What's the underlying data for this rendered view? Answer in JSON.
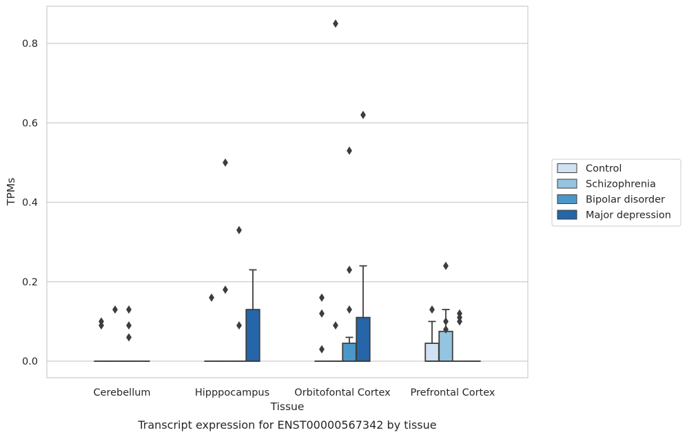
{
  "chart_data": {
    "type": "box",
    "caption": "Transcript expression for ENST00000567342 by tissue",
    "xlabel": "Tissue",
    "ylabel": "TPMs",
    "ylim": [
      -0.04,
      0.895
    ],
    "yticks": [
      "0.0",
      "0.2",
      "0.4",
      "0.6",
      "0.8"
    ],
    "grid": "horizontal",
    "legend_position": "right",
    "categories": [
      "Cerebellum",
      "Hipppocampus",
      "Orbitofontal Cortex",
      "Prefrontal Cortex"
    ],
    "series": [
      {
        "name": "Control",
        "color": "#d0e1f2",
        "boxes": [
          {
            "q1": 0,
            "median": 0,
            "q3": 0,
            "whisker_low": 0,
            "whisker_high": 0,
            "outliers": [
              0.09,
              0.1
            ]
          },
          {
            "q1": 0,
            "median": 0,
            "q3": 0,
            "whisker_low": 0,
            "whisker_high": 0,
            "outliers": [
              0.16
            ]
          },
          {
            "q1": 0,
            "median": 0,
            "q3": 0,
            "whisker_low": 0,
            "whisker_high": 0,
            "outliers": [
              0.03,
              0.12,
              0.16
            ]
          },
          {
            "q1": 0,
            "median": 0,
            "q3": 0.045,
            "whisker_low": 0,
            "whisker_high": 0.1,
            "outliers": [
              0.13
            ]
          }
        ]
      },
      {
        "name": "Schizophrenia",
        "color": "#94c4df",
        "boxes": [
          {
            "q1": 0,
            "median": 0,
            "q3": 0,
            "whisker_low": 0,
            "whisker_high": 0,
            "outliers": [
              0.13
            ]
          },
          {
            "q1": 0,
            "median": 0,
            "q3": 0,
            "whisker_low": 0,
            "whisker_high": 0,
            "outliers": [
              0.18,
              0.5
            ]
          },
          {
            "q1": 0,
            "median": 0,
            "q3": 0,
            "whisker_low": 0,
            "whisker_high": 0,
            "outliers": [
              0.09,
              0.85
            ]
          },
          {
            "q1": 0,
            "median": 0,
            "q3": 0.075,
            "whisker_low": 0,
            "whisker_high": 0.13,
            "outliers": [
              0.08,
              0.1,
              0.24
            ]
          }
        ]
      },
      {
        "name": "Bipolar disorder",
        "color": "#4a98c9",
        "boxes": [
          {
            "q1": 0,
            "median": 0,
            "q3": 0,
            "whisker_low": 0,
            "whisker_high": 0,
            "outliers": [
              0.06,
              0.09,
              0.13
            ]
          },
          {
            "q1": 0,
            "median": 0,
            "q3": 0,
            "whisker_low": 0,
            "whisker_high": 0,
            "outliers": [
              0.09,
              0.33
            ]
          },
          {
            "q1": 0,
            "median": 0,
            "q3": 0.045,
            "whisker_low": 0,
            "whisker_high": 0.06,
            "outliers": [
              0.13,
              0.23,
              0.53
            ]
          },
          {
            "q1": 0,
            "median": 0,
            "q3": 0,
            "whisker_low": 0,
            "whisker_high": 0,
            "outliers": [
              0.1,
              0.11,
              0.12
            ]
          }
        ]
      },
      {
        "name": "Major depression",
        "color": "#2565a8",
        "boxes": [
          {
            "q1": 0,
            "median": 0,
            "q3": 0,
            "whisker_low": 0,
            "whisker_high": 0,
            "outliers": []
          },
          {
            "q1": 0,
            "median": 0,
            "q3": 0.13,
            "whisker_low": 0,
            "whisker_high": 0.23,
            "outliers": []
          },
          {
            "q1": 0,
            "median": 0,
            "q3": 0.11,
            "whisker_low": 0,
            "whisker_high": 0.24,
            "outliers": [
              0.62
            ]
          },
          {
            "q1": 0,
            "median": 0,
            "q3": 0,
            "whisker_low": 0,
            "whisker_high": 0,
            "outliers": []
          }
        ]
      }
    ],
    "colors": {
      "grid": "#cccccc",
      "frame": "#cccccc",
      "box_edge": "#3d3d3d",
      "text": "#262626"
    }
  }
}
